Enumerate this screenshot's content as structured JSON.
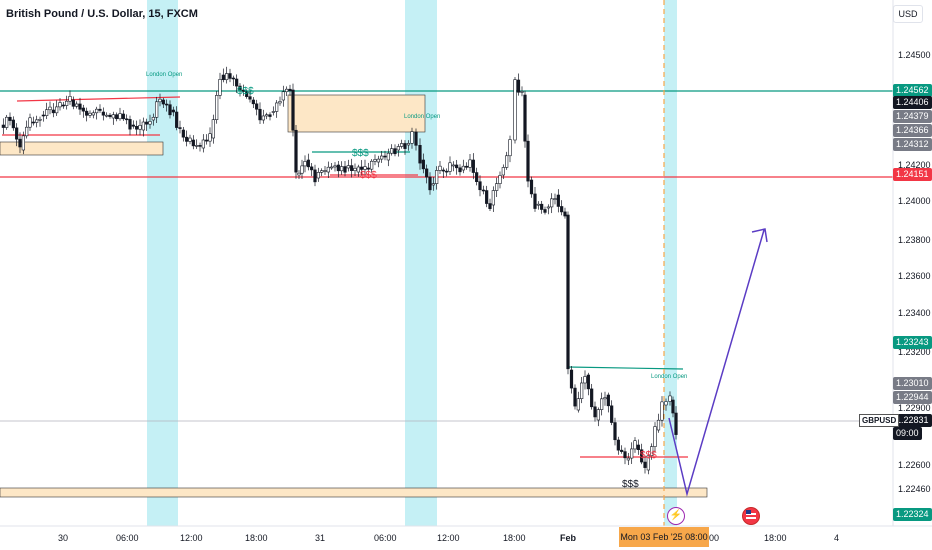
{
  "header": {
    "title": "British Pound / U.S. Dollar, 15, FXCM",
    "currency_button": "USD"
  },
  "axis": {
    "y_ticks": [
      "1.24500",
      "1.24200",
      "1.24000",
      "1.23800",
      "1.23600",
      "1.23400",
      "1.23200",
      "1.22900",
      "1.22600",
      "1.22460"
    ],
    "x_ticks": [
      "30",
      "06:00",
      "12:00",
      "18:00",
      "31",
      "06:00",
      "12:00",
      "18:00",
      "Feb",
      "18:00",
      "4"
    ],
    "x_tick_partial": "00",
    "selected_time": "Mon 03 Feb '25   08:00"
  },
  "price_labels": [
    {
      "text": "1.24562",
      "kind": "teal"
    },
    {
      "text": "1.24406",
      "kind": "dark"
    },
    {
      "text": "1.24379",
      "kind": "gray"
    },
    {
      "text": "1.24366",
      "kind": "gray"
    },
    {
      "text": "1.24312",
      "kind": "gray"
    },
    {
      "text": "1.24151",
      "kind": "red"
    },
    {
      "text": "1.23243",
      "kind": "teal"
    },
    {
      "text": "1.23010",
      "kind": "gray"
    },
    {
      "text": "1.22944",
      "kind": "gray"
    },
    {
      "text": "1.22831",
      "kind": "dark"
    },
    {
      "text": "09:00",
      "kind": "dark"
    },
    {
      "text": "1.22324",
      "kind": "teal"
    }
  ],
  "symbol_label": "GBPUSD",
  "annotations": {
    "session_label": "London Open",
    "liquidity_marker": "$$$"
  },
  "colors": {
    "teal": "#089981",
    "red": "#f23645",
    "session": "#b2ebf2",
    "zone": "#fde7c6",
    "arrow": "#5b3cc4",
    "orange": "#f7a74a"
  }
}
